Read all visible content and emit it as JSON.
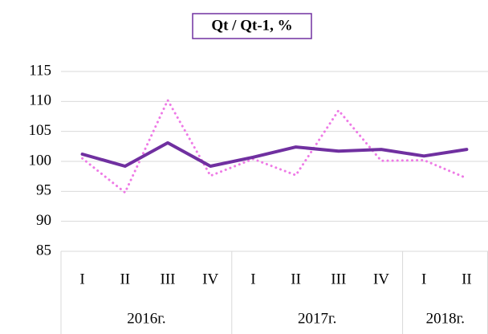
{
  "chart_data": {
    "type": "line",
    "title": "Qt / Qt-1, %",
    "categories": [
      "I",
      "II",
      "III",
      "IV",
      "I",
      "II",
      "III",
      "IV",
      "I",
      "II"
    ],
    "groups": [
      {
        "label": "2016г.",
        "span": 4
      },
      {
        "label": "2017г.",
        "span": 4
      },
      {
        "label": "2018г.",
        "span": 2
      }
    ],
    "series": [
      {
        "color": "#7030a0",
        "style": "solid",
        "values": [
          101.2,
          99.2,
          103.1,
          99.2,
          100.7,
          102.4,
          101.7,
          102.0,
          100.9,
          102.0
        ]
      },
      {
        "color": "#ee7ae6",
        "style": "dotted",
        "values": [
          100.5,
          94.8,
          110.2,
          97.6,
          100.4,
          97.7,
          108.5,
          100.1,
          100.2,
          97.2
        ]
      }
    ],
    "ylim": [
      85,
      115
    ],
    "yticks": [
      85,
      90,
      95,
      100,
      105,
      110,
      115
    ],
    "grid": true
  }
}
